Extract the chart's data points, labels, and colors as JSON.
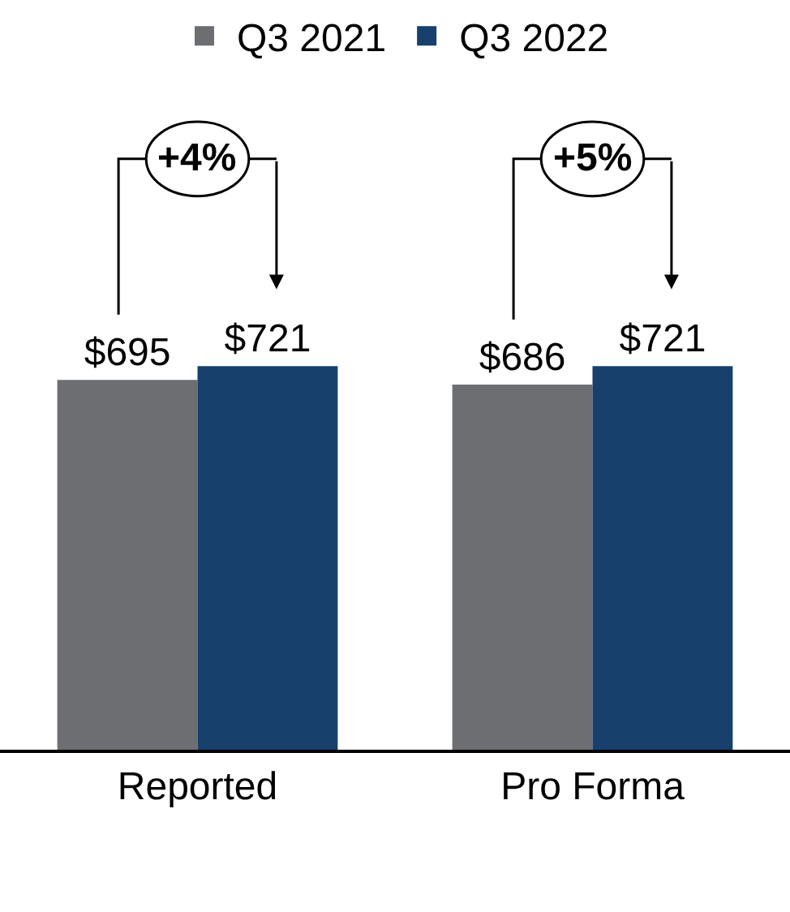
{
  "chart_data": {
    "type": "bar",
    "categories": [
      "Reported",
      "Pro Forma"
    ],
    "series": [
      {
        "name": "Q3 2021",
        "color": "#6d6e71",
        "values": [
          695,
          686
        ],
        "value_labels": [
          "$695",
          "$686"
        ]
      },
      {
        "name": "Q3 2022",
        "color": "#17406d",
        "values": [
          721,
          721
        ],
        "value_labels": [
          "$721",
          "$721"
        ]
      }
    ],
    "legend": "top",
    "grid": false,
    "tick_labels": "x",
    "annotations": [
      "+4%",
      "+5%"
    ]
  }
}
